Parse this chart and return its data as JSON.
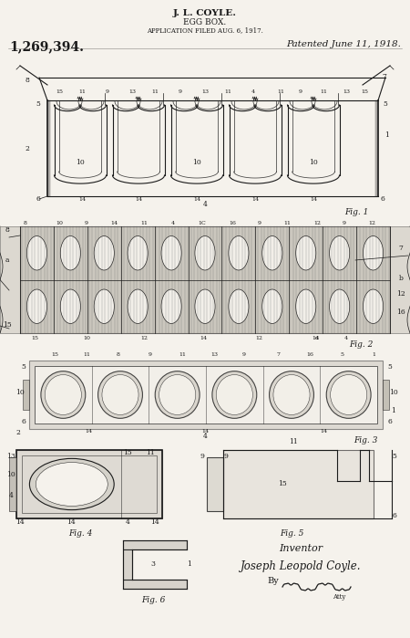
{
  "bg_color": "#e8e4dc",
  "paper_color": "#f5f2ec",
  "line_color": "#1a1a1a",
  "title_line1": "J. L. COYLE.",
  "title_line2": "EGG BOX.",
  "title_line3": "APPLICATION FILED AUG. 6, 1917.",
  "patent_number": "1,269,394.",
  "patent_date": "Patented June 11, 1918.",
  "inventor_label": "Inventor",
  "inventor_name": "Joseph Leopold Coyle.",
  "inventor_by": "By"
}
